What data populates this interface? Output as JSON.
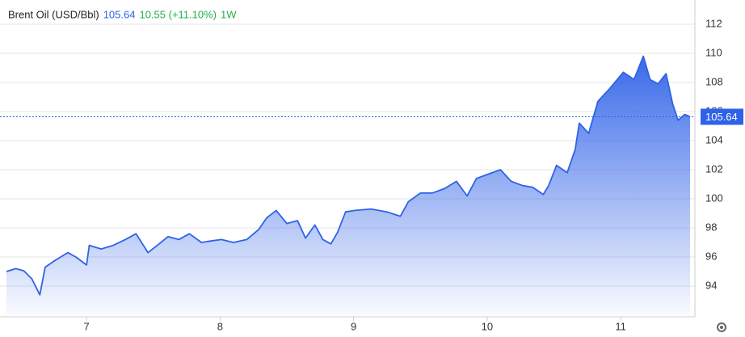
{
  "chart_data": {
    "type": "area",
    "title": "Brent Oil (USD/Bbl)",
    "current_value": 105.64,
    "change": "10.55 (+11.10%)",
    "period": "1W",
    "color": "#2f62e8",
    "grid": true,
    "xlim": [
      6.4,
      11.55
    ],
    "xticks": [
      7,
      8,
      9,
      10,
      11
    ],
    "ylim": [
      92,
      113
    ],
    "yticks": [
      94,
      96,
      98,
      100,
      102,
      104,
      106,
      108,
      110,
      112
    ],
    "x": [
      6.4,
      6.47,
      6.53,
      6.59,
      6.65,
      6.69,
      6.77,
      6.86,
      6.92,
      7.0,
      7.02,
      7.11,
      7.2,
      7.29,
      7.37,
      7.46,
      7.53,
      7.61,
      7.69,
      7.77,
      7.86,
      7.93,
      8.01,
      8.1,
      8.2,
      8.29,
      8.35,
      8.42,
      8.5,
      8.58,
      8.64,
      8.71,
      8.77,
      8.83,
      8.88,
      8.94,
      9.01,
      9.13,
      9.25,
      9.35,
      9.41,
      9.5,
      9.59,
      9.68,
      9.77,
      9.85,
      9.92,
      10.01,
      10.1,
      10.18,
      10.27,
      10.34,
      10.42,
      10.46,
      10.52,
      10.6,
      10.66,
      10.69,
      10.76,
      10.83,
      10.92,
      11.02,
      11.1,
      11.17,
      11.22,
      11.28,
      11.34,
      11.39,
      11.43,
      11.48,
      11.52
    ],
    "values": [
      95.0,
      95.2,
      95.05,
      94.5,
      93.4,
      95.3,
      95.8,
      96.3,
      96.0,
      95.45,
      96.8,
      96.55,
      96.8,
      97.2,
      97.6,
      96.3,
      96.8,
      97.4,
      97.2,
      97.6,
      97.0,
      97.1,
      97.2,
      97.0,
      97.2,
      97.9,
      98.7,
      99.2,
      98.3,
      98.5,
      97.3,
      98.2,
      97.2,
      96.9,
      97.7,
      99.1,
      99.2,
      99.3,
      99.1,
      98.8,
      99.8,
      100.4,
      100.4,
      100.7,
      101.2,
      100.2,
      101.4,
      101.7,
      102.0,
      101.2,
      100.9,
      100.8,
      100.3,
      100.9,
      102.3,
      101.8,
      103.4,
      105.2,
      104.5,
      106.7,
      107.6,
      108.7,
      108.2,
      109.8,
      108.2,
      107.9,
      108.6,
      106.5,
      105.4,
      105.8,
      105.64
    ]
  }
}
